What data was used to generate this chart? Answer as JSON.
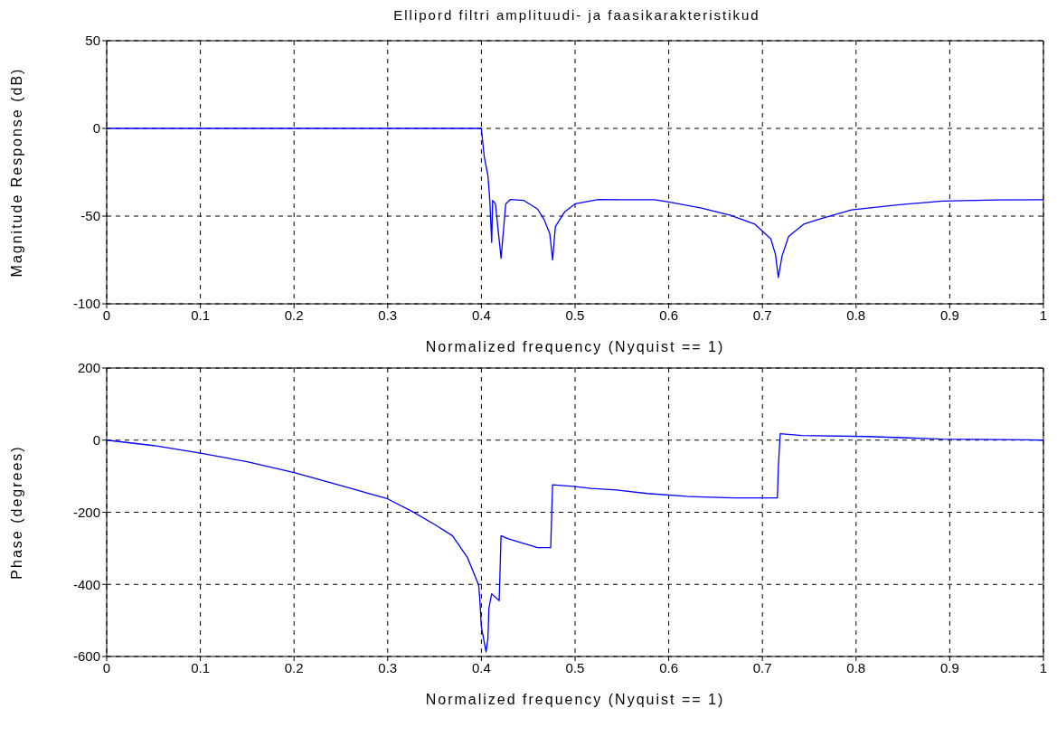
{
  "chart_data": [
    {
      "type": "line",
      "title": "Ellipord filtri amplituudi- ja faasikarakteristikud",
      "xlabel": "Normalized frequency (Nyquist == 1)",
      "ylabel": "Magnitude Response (dB)",
      "xlim": [
        0,
        1
      ],
      "xticks": [
        0,
        0.1,
        0.2,
        0.3,
        0.4,
        0.5,
        0.6,
        0.7,
        0.8,
        0.9,
        1
      ],
      "ylim": [
        -100,
        50
      ],
      "yticks": [
        -100,
        -50,
        0,
        50
      ],
      "grid": true,
      "legend": false,
      "marker": "none",
      "line_style": "solid",
      "series": [
        {
          "color": "#0000ff",
          "x": [
            0,
            0.1,
            0.2,
            0.3,
            0.4,
            0.403,
            0.407,
            0.409,
            0.411,
            0.412,
            0.415,
            0.421,
            0.426,
            0.431,
            0.445,
            0.46,
            0.467,
            0.473,
            0.476,
            0.479,
            0.489,
            0.5,
            0.525,
            0.55,
            0.585,
            0.6,
            0.634,
            0.666,
            0.692,
            0.709,
            0.714,
            0.717,
            0.721,
            0.728,
            0.744,
            0.763,
            0.795,
            0.844,
            0.892,
            0.95,
            1
          ],
          "values": [
            0,
            0,
            0,
            0,
            0,
            -16,
            -27,
            -41,
            -65,
            -41,
            -43,
            -74,
            -43,
            -40.5,
            -41,
            -46,
            -52,
            -60,
            -75,
            -56,
            -47.5,
            -43,
            -40.5,
            -40.7,
            -40.7,
            -42,
            -45.3,
            -49.6,
            -54.6,
            -63,
            -72,
            -85,
            -72.6,
            -61.6,
            -54.6,
            -51.3,
            -46.5,
            -43.6,
            -41.4,
            -40.8,
            -40.7
          ]
        }
      ]
    },
    {
      "type": "line",
      "xlabel": "Normalized frequency (Nyquist == 1)",
      "ylabel": "Phase (degrees)",
      "xlim": [
        0,
        1
      ],
      "xticks": [
        0,
        0.1,
        0.2,
        0.3,
        0.4,
        0.5,
        0.6,
        0.7,
        0.8,
        0.9,
        1
      ],
      "ylim": [
        -600,
        200
      ],
      "yticks": [
        -600,
        -400,
        -200,
        0,
        200
      ],
      "grid": true,
      "legend": false,
      "marker": "none",
      "line_style": "solid",
      "series": [
        {
          "color": "#0000ff",
          "x": [
            0,
            0.05,
            0.1,
            0.15,
            0.2,
            0.247,
            0.3,
            0.327,
            0.35,
            0.369,
            0.385,
            0.397,
            0.398,
            0.4,
            0.405,
            0.407,
            0.408,
            0.411,
            0.419,
            0.421,
            0.428,
            0.46,
            0.474,
            0.476,
            0.498,
            0.517,
            0.544,
            0.577,
            0.619,
            0.669,
            0.716,
            0.717,
            0.719,
            0.742,
            0.812,
            0.892,
            0.979,
            1
          ],
          "values": [
            0,
            -15,
            -36,
            -60,
            -90,
            -124,
            -163,
            -199,
            -234,
            -265,
            -325,
            -401,
            -430,
            -518,
            -587,
            -550,
            -467,
            -426,
            -445,
            -265,
            -273,
            -298,
            -298,
            -124,
            -128,
            -134,
            -138,
            -148,
            -156,
            -160,
            -160,
            -75,
            18,
            13,
            10,
            3,
            1,
            0
          ]
        }
      ]
    }
  ]
}
